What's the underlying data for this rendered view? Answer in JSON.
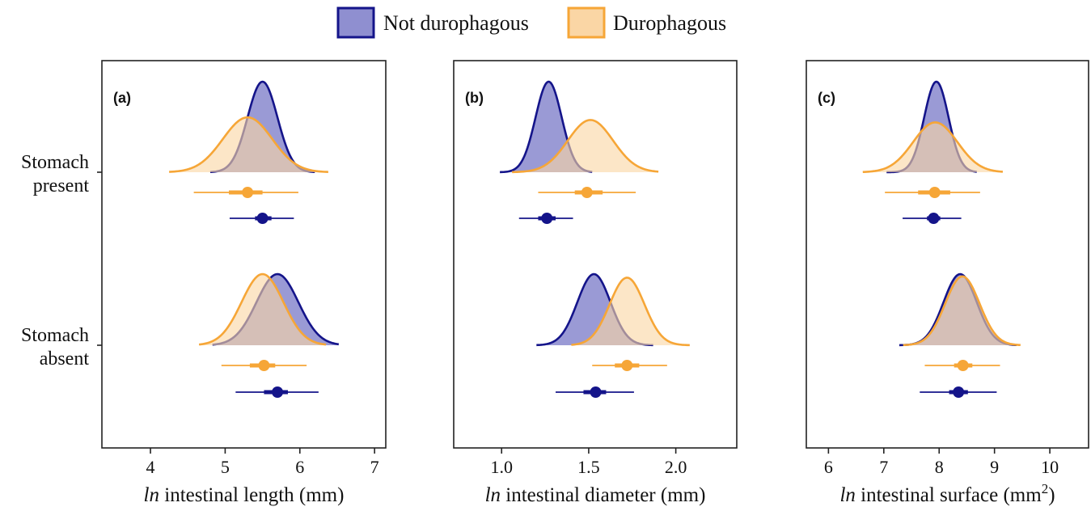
{
  "legend": {
    "position": "top-center",
    "entries": [
      {
        "label": "Not durophagous",
        "fill": "#8f8fd0",
        "stroke": "#14148a"
      },
      {
        "label": "Durophagous",
        "fill": "#fad6a5",
        "stroke": "#f6a637"
      }
    ]
  },
  "y_categories": [
    {
      "key": "present",
      "lines": [
        "Stomach",
        "present"
      ]
    },
    {
      "key": "absent",
      "lines": [
        "Stomach",
        "absent"
      ]
    }
  ],
  "colors": {
    "not": {
      "fill": "#8f8fd0",
      "stroke": "#14148a",
      "point": "#14148a"
    },
    "duro": {
      "fill": "#fad6a5",
      "stroke": "#f6a637",
      "point": "#f6a637"
    }
  },
  "chart_data": [
    {
      "type": "density-interval",
      "panel_label": "(a)",
      "xlabel_italic": "ln",
      "xlabel_rest": " intestinal length (mm)",
      "xlabel_sup": "",
      "xlabel_after": "",
      "xlim": [
        3.35,
        7.15
      ],
      "xticks": [
        4,
        5,
        6,
        7
      ],
      "xtick_labels": [
        "4",
        "5",
        "6",
        "7"
      ],
      "grid": false,
      "groups": {
        "present": {
          "not": {
            "mode": 5.5,
            "sd": 0.2,
            "min": 4.8,
            "max": 6.2,
            "point": 5.5,
            "inner": [
              5.4,
              5.62
            ],
            "outer": [
              5.06,
              5.92
            ]
          },
          "duro": {
            "mode": 5.3,
            "sd": 0.33,
            "min": 4.25,
            "max": 6.38,
            "point": 5.3,
            "inner": [
              5.05,
              5.5
            ],
            "outer": [
              4.58,
              5.98
            ]
          }
        },
        "absent": {
          "not": {
            "mode": 5.7,
            "sd": 0.28,
            "min": 4.83,
            "max": 6.52,
            "point": 5.7,
            "inner": [
              5.52,
              5.84
            ],
            "outer": [
              5.14,
              6.25
            ]
          },
          "duro": {
            "mode": 5.5,
            "sd": 0.28,
            "min": 4.65,
            "max": 6.35,
            "point": 5.52,
            "inner": [
              5.33,
              5.67
            ],
            "outer": [
              4.95,
              6.09
            ]
          }
        }
      }
    },
    {
      "type": "density-interval",
      "panel_label": "(b)",
      "xlabel_italic": "ln",
      "xlabel_rest": " intestinal diameter (mm)",
      "xlabel_sup": "",
      "xlabel_after": "",
      "xlim": [
        0.725,
        2.35
      ],
      "xticks": [
        1.0,
        1.5,
        2.0
      ],
      "xtick_labels": [
        "1.0",
        "1.5",
        "2.0"
      ],
      "grid": false,
      "groups": {
        "present": {
          "not": {
            "mode": 1.27,
            "sd": 0.075,
            "min": 0.99,
            "max": 1.52,
            "point": 1.26,
            "inner": [
              1.21,
              1.31
            ],
            "outer": [
              1.1,
              1.41
            ]
          },
          "duro": {
            "mode": 1.51,
            "sd": 0.13,
            "min": 1.06,
            "max": 1.9,
            "point": 1.49,
            "inner": [
              1.42,
              1.58
            ],
            "outer": [
              1.21,
              1.77
            ]
          }
        },
        "absent": {
          "not": {
            "mode": 1.53,
            "sd": 0.095,
            "min": 1.2,
            "max": 1.87,
            "point": 1.54,
            "inner": [
              1.47,
              1.6
            ],
            "outer": [
              1.31,
              1.76
            ]
          },
          "duro": {
            "mode": 1.72,
            "sd": 0.1,
            "min": 1.4,
            "max": 2.08,
            "point": 1.72,
            "inner": [
              1.65,
              1.79
            ],
            "outer": [
              1.52,
              1.95
            ]
          }
        }
      }
    },
    {
      "type": "density-interval",
      "panel_label": "(c)",
      "xlabel_italic": "ln",
      "xlabel_rest": " intestinal surface (mm",
      "xlabel_sup": "2",
      "xlabel_after": ")",
      "xlim": [
        5.6,
        10.7
      ],
      "xticks": [
        6,
        7,
        8,
        9,
        10
      ],
      "xtick_labels": [
        "6",
        "7",
        "8",
        "9",
        "10"
      ],
      "grid": false,
      "groups": {
        "present": {
          "not": {
            "mode": 7.95,
            "sd": 0.22,
            "min": 7.05,
            "max": 8.68,
            "point": 7.9,
            "inner": [
              7.78,
              8.02
            ],
            "outer": [
              7.34,
              8.4
            ]
          },
          "duro": {
            "mode": 7.93,
            "sd": 0.4,
            "min": 6.62,
            "max": 9.15,
            "point": 7.92,
            "inner": [
              7.62,
              8.2
            ],
            "outer": [
              7.02,
              8.74
            ]
          }
        },
        "absent": {
          "not": {
            "mode": 8.38,
            "sd": 0.3,
            "min": 7.28,
            "max": 9.4,
            "point": 8.35,
            "inner": [
              8.18,
              8.52
            ],
            "outer": [
              7.65,
              9.04
            ]
          },
          "duro": {
            "mode": 8.42,
            "sd": 0.31,
            "min": 7.35,
            "max": 9.47,
            "point": 8.43,
            "inner": [
              8.27,
              8.6
            ],
            "outer": [
              7.74,
              9.1
            ]
          }
        }
      }
    }
  ]
}
